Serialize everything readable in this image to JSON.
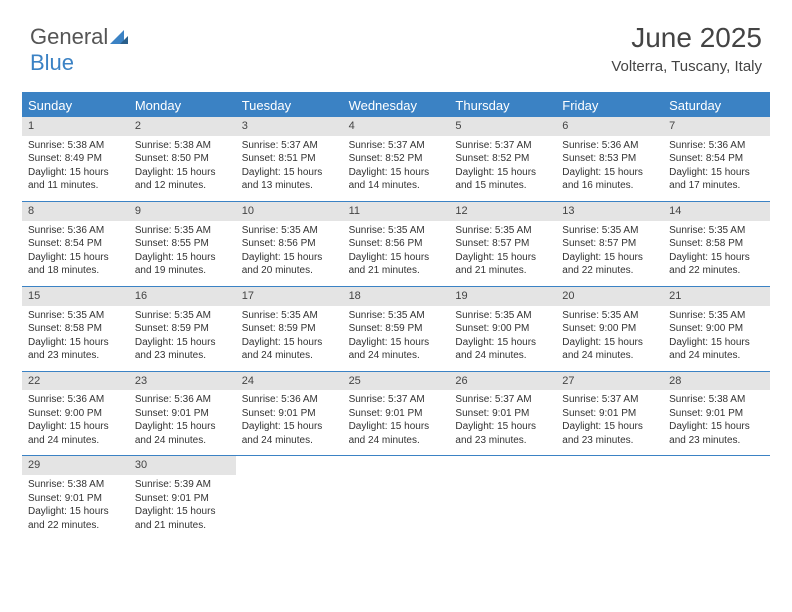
{
  "logo": {
    "text1": "General",
    "text2": "Blue"
  },
  "title": "June 2025",
  "location": "Volterra, Tuscany, Italy",
  "colors": {
    "accent": "#3b82c4",
    "daynum_bg": "#e4e4e4",
    "text": "#333333",
    "background": "#ffffff"
  },
  "day_headers": [
    "Sunday",
    "Monday",
    "Tuesday",
    "Wednesday",
    "Thursday",
    "Friday",
    "Saturday"
  ],
  "days": [
    {
      "n": 1,
      "sr": "5:38 AM",
      "ss": "8:49 PM",
      "dl": "15 hours and 11 minutes."
    },
    {
      "n": 2,
      "sr": "5:38 AM",
      "ss": "8:50 PM",
      "dl": "15 hours and 12 minutes."
    },
    {
      "n": 3,
      "sr": "5:37 AM",
      "ss": "8:51 PM",
      "dl": "15 hours and 13 minutes."
    },
    {
      "n": 4,
      "sr": "5:37 AM",
      "ss": "8:52 PM",
      "dl": "15 hours and 14 minutes."
    },
    {
      "n": 5,
      "sr": "5:37 AM",
      "ss": "8:52 PM",
      "dl": "15 hours and 15 minutes."
    },
    {
      "n": 6,
      "sr": "5:36 AM",
      "ss": "8:53 PM",
      "dl": "15 hours and 16 minutes."
    },
    {
      "n": 7,
      "sr": "5:36 AM",
      "ss": "8:54 PM",
      "dl": "15 hours and 17 minutes."
    },
    {
      "n": 8,
      "sr": "5:36 AM",
      "ss": "8:54 PM",
      "dl": "15 hours and 18 minutes."
    },
    {
      "n": 9,
      "sr": "5:35 AM",
      "ss": "8:55 PM",
      "dl": "15 hours and 19 minutes."
    },
    {
      "n": 10,
      "sr": "5:35 AM",
      "ss": "8:56 PM",
      "dl": "15 hours and 20 minutes."
    },
    {
      "n": 11,
      "sr": "5:35 AM",
      "ss": "8:56 PM",
      "dl": "15 hours and 21 minutes."
    },
    {
      "n": 12,
      "sr": "5:35 AM",
      "ss": "8:57 PM",
      "dl": "15 hours and 21 minutes."
    },
    {
      "n": 13,
      "sr": "5:35 AM",
      "ss": "8:57 PM",
      "dl": "15 hours and 22 minutes."
    },
    {
      "n": 14,
      "sr": "5:35 AM",
      "ss": "8:58 PM",
      "dl": "15 hours and 22 minutes."
    },
    {
      "n": 15,
      "sr": "5:35 AM",
      "ss": "8:58 PM",
      "dl": "15 hours and 23 minutes."
    },
    {
      "n": 16,
      "sr": "5:35 AM",
      "ss": "8:59 PM",
      "dl": "15 hours and 23 minutes."
    },
    {
      "n": 17,
      "sr": "5:35 AM",
      "ss": "8:59 PM",
      "dl": "15 hours and 24 minutes."
    },
    {
      "n": 18,
      "sr": "5:35 AM",
      "ss": "8:59 PM",
      "dl": "15 hours and 24 minutes."
    },
    {
      "n": 19,
      "sr": "5:35 AM",
      "ss": "9:00 PM",
      "dl": "15 hours and 24 minutes."
    },
    {
      "n": 20,
      "sr": "5:35 AM",
      "ss": "9:00 PM",
      "dl": "15 hours and 24 minutes."
    },
    {
      "n": 21,
      "sr": "5:35 AM",
      "ss": "9:00 PM",
      "dl": "15 hours and 24 minutes."
    },
    {
      "n": 22,
      "sr": "5:36 AM",
      "ss": "9:00 PM",
      "dl": "15 hours and 24 minutes."
    },
    {
      "n": 23,
      "sr": "5:36 AM",
      "ss": "9:01 PM",
      "dl": "15 hours and 24 minutes."
    },
    {
      "n": 24,
      "sr": "5:36 AM",
      "ss": "9:01 PM",
      "dl": "15 hours and 24 minutes."
    },
    {
      "n": 25,
      "sr": "5:37 AM",
      "ss": "9:01 PM",
      "dl": "15 hours and 24 minutes."
    },
    {
      "n": 26,
      "sr": "5:37 AM",
      "ss": "9:01 PM",
      "dl": "15 hours and 23 minutes."
    },
    {
      "n": 27,
      "sr": "5:37 AM",
      "ss": "9:01 PM",
      "dl": "15 hours and 23 minutes."
    },
    {
      "n": 28,
      "sr": "5:38 AM",
      "ss": "9:01 PM",
      "dl": "15 hours and 23 minutes."
    },
    {
      "n": 29,
      "sr": "5:38 AM",
      "ss": "9:01 PM",
      "dl": "15 hours and 22 minutes."
    },
    {
      "n": 30,
      "sr": "5:39 AM",
      "ss": "9:01 PM",
      "dl": "15 hours and 21 minutes."
    }
  ],
  "labels": {
    "sunrise": "Sunrise:",
    "sunset": "Sunset:",
    "daylight": "Daylight:"
  },
  "layout": {
    "start_weekday": 0,
    "total_cells": 35
  }
}
